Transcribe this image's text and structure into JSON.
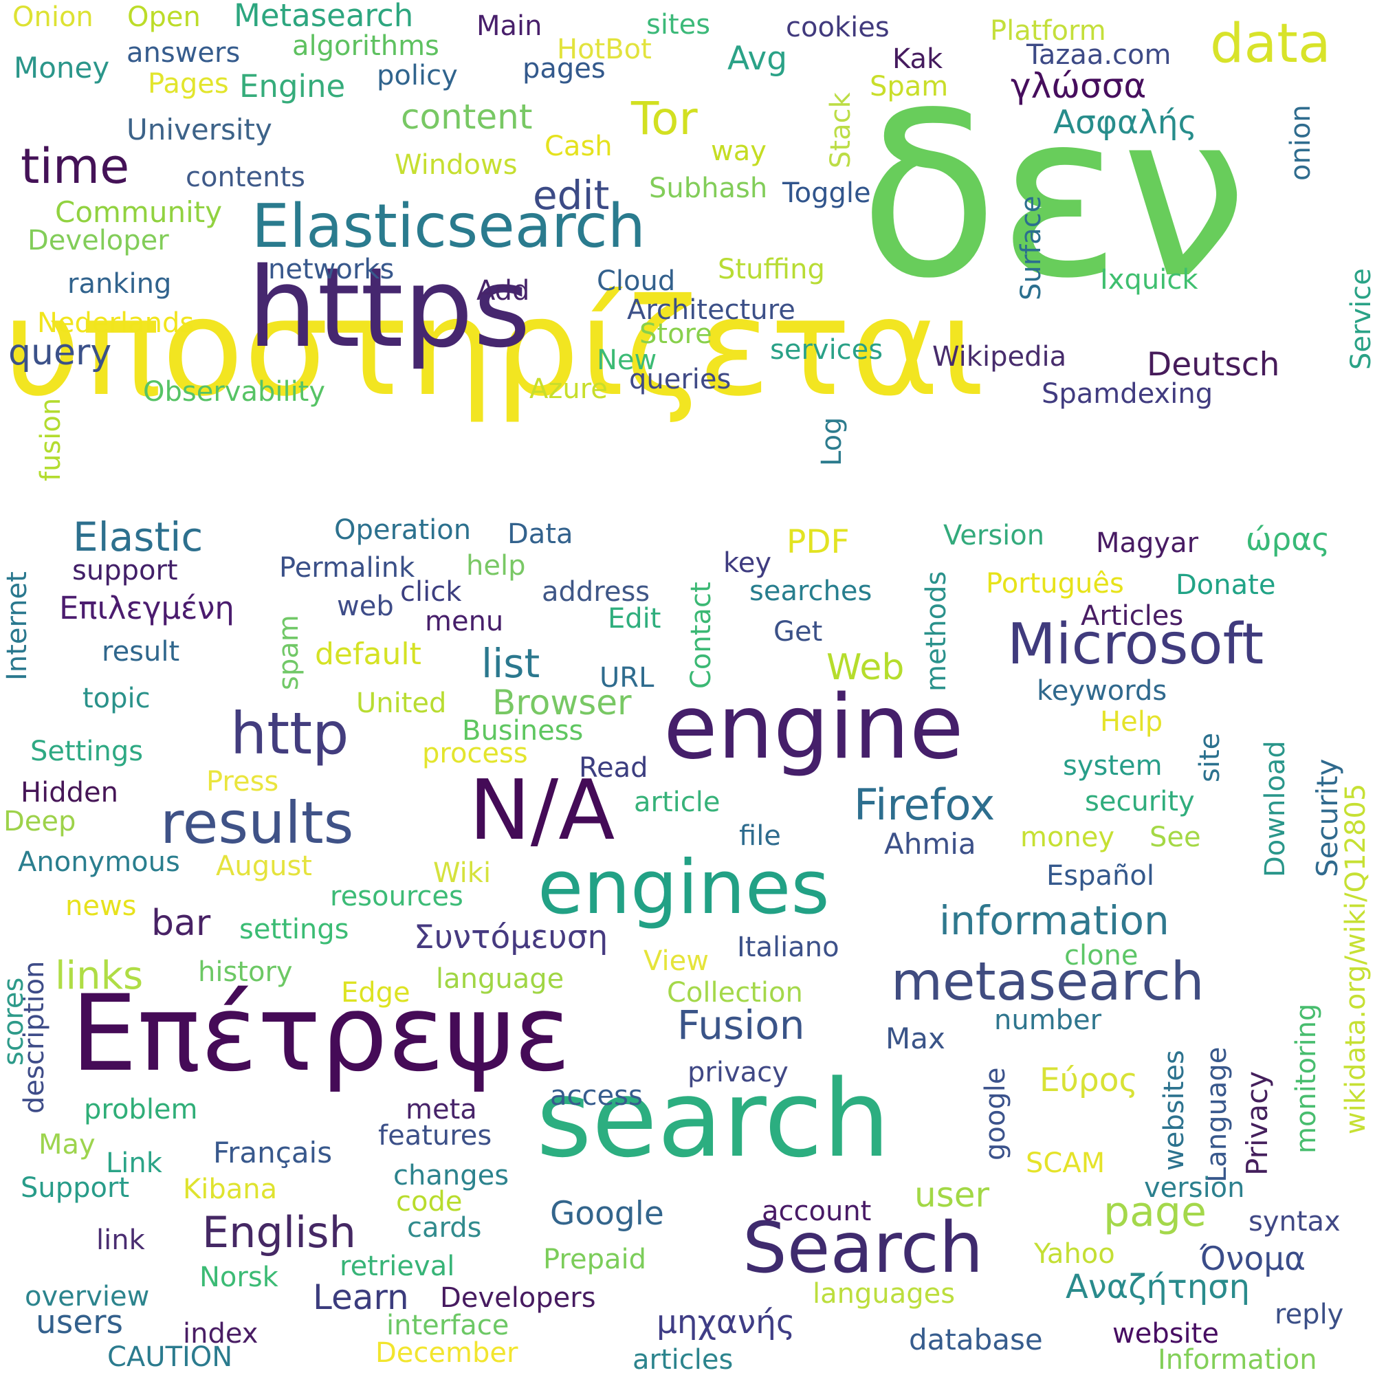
{
  "words": [
    {
      "text": "υποστηρίζεται",
      "color": "#f2e521"
    },
    {
      "text": "δεν",
      "color": "#68cd5b"
    },
    {
      "text": "https",
      "color": "#46276f"
    },
    {
      "text": "Επέτρεψε",
      "color": "#450b57"
    },
    {
      "text": "search",
      "color": "#2cae80"
    },
    {
      "text": "engine",
      "color": "#451f6a"
    },
    {
      "text": "engines",
      "color": "#22a185"
    },
    {
      "text": "N/A",
      "color": "#440b57"
    },
    {
      "text": "Elasticsearch",
      "color": "#2a7b8e"
    },
    {
      "text": "Search",
      "color": "#3f2b6e"
    },
    {
      "text": "Microsoft",
      "color": "#403b7d"
    },
    {
      "text": "metasearch",
      "color": "#404c80"
    },
    {
      "text": "results",
      "color": "#3f5287"
    },
    {
      "text": "http",
      "color": "#433d7e"
    },
    {
      "text": "data",
      "color": "#d8e32a"
    },
    {
      "text": "time",
      "color": "#441257"
    },
    {
      "text": "Tor",
      "color": "#d2e021"
    },
    {
      "text": "English",
      "color": "#452864"
    },
    {
      "text": "Firefox",
      "color": "#2d6e8e"
    },
    {
      "text": "information",
      "color": "#2f788e"
    },
    {
      "text": "Fusion",
      "color": "#3a5488"
    },
    {
      "text": "page",
      "color": "#a4d84b"
    },
    {
      "text": "Elastic",
      "color": "#2d708e"
    },
    {
      "text": "list",
      "color": "#2b788e"
    },
    {
      "text": "links",
      "color": "#afdd45"
    },
    {
      "text": "edit",
      "color": "#3c4b86"
    },
    {
      "text": "query",
      "color": "#3b5189"
    },
    {
      "text": "bar",
      "color": "#482265"
    },
    {
      "text": "user",
      "color": "#a2d845"
    },
    {
      "text": "content",
      "color": "#78c864"
    },
    {
      "text": "Browser",
      "color": "#78c864"
    },
    {
      "text": "Web",
      "color": "#b5dd2c"
    },
    {
      "text": "Learn",
      "color": "#3b3c7d"
    },
    {
      "text": "Αναζήτηση",
      "color": "#2a8b8c"
    },
    {
      "text": "Deutsch",
      "color": "#461b5a"
    },
    {
      "text": "γλώσσα",
      "color": "#460e5d"
    },
    {
      "text": "Google",
      "color": "#33658c"
    },
    {
      "text": "users",
      "color": "#33608c"
    },
    {
      "text": "Εύρος",
      "color": "#d8e236"
    },
    {
      "text": "Ασφαλής",
      "color": "#278d8b"
    },
    {
      "text": "Όνομα",
      "color": "#3a4c89"
    },
    {
      "text": "Συντόμευση",
      "color": "#463a80"
    },
    {
      "text": "Επιλεγμένη",
      "color": "#4b1c6e"
    },
    {
      "text": "μηχανής",
      "color": "#3f3d85"
    },
    {
      "text": "ώρας",
      "color": "#38b977"
    },
    {
      "text": "Avg",
      "color": "#2ba287"
    },
    {
      "text": "Metasearch",
      "color": "#2da67f"
    },
    {
      "text": "Engine",
      "color": "#36ac7b"
    },
    {
      "text": "Money",
      "color": "#2b968a"
    },
    {
      "text": "Onion",
      "color": "#dde233"
    },
    {
      "text": "Open",
      "color": "#bcdc29"
    },
    {
      "text": "answers",
      "color": "#365c8d"
    },
    {
      "text": "algorithms",
      "color": "#5ec160"
    },
    {
      "text": "Main",
      "color": "#481f6b"
    },
    {
      "text": "sites",
      "color": "#3cb979"
    },
    {
      "text": "HotBot",
      "color": "#e2e33d"
    },
    {
      "text": "cookies",
      "color": "#413a7d"
    },
    {
      "text": "Platform",
      "color": "#c4df3b"
    },
    {
      "text": "Kak",
      "color": "#451b5e"
    },
    {
      "text": "Tazaa.com",
      "color": "#3d4a86"
    },
    {
      "text": "Pages",
      "color": "#e2e52d"
    },
    {
      "text": "policy",
      "color": "#30648d"
    },
    {
      "text": "pages",
      "color": "#33598c"
    },
    {
      "text": "Spam",
      "color": "#c9de2a"
    },
    {
      "text": "University",
      "color": "#3d6389"
    },
    {
      "text": "Stack",
      "color": "#bcdd46"
    },
    {
      "text": "Cash",
      "color": "#e5e21e"
    },
    {
      "text": "way",
      "color": "#c5dd23"
    },
    {
      "text": "Windows",
      "color": "#c6df31"
    },
    {
      "text": "onion",
      "color": "#2f6c8e"
    },
    {
      "text": "contents",
      "color": "#3f5a89"
    },
    {
      "text": "Subhash",
      "color": "#82cd59"
    },
    {
      "text": "Toggle",
      "color": "#31558c"
    },
    {
      "text": "Surface",
      "color": "#2b6f8e"
    },
    {
      "text": "Community",
      "color": "#91d240"
    },
    {
      "text": "Developer",
      "color": "#82cd59"
    },
    {
      "text": "Service",
      "color": "#2aa286"
    },
    {
      "text": "networks",
      "color": "#38588c"
    },
    {
      "text": "Stuffing",
      "color": "#b8dc34"
    },
    {
      "text": "ranking",
      "color": "#31638d"
    },
    {
      "text": "Add",
      "color": "#47246a"
    },
    {
      "text": "Cloud",
      "color": "#33608c"
    },
    {
      "text": "Ixquick",
      "color": "#3fbf6f"
    },
    {
      "text": "Architecture",
      "color": "#3c5088"
    },
    {
      "text": "Nederlands",
      "color": "#f1e51d"
    },
    {
      "text": "Store",
      "color": "#88d04c"
    },
    {
      "text": "services",
      "color": "#2aa187"
    },
    {
      "text": "New",
      "color": "#3cbb75"
    },
    {
      "text": "Wikipedia",
      "color": "#472c6c"
    },
    {
      "text": "queries",
      "color": "#404a86"
    },
    {
      "text": "Observability",
      "color": "#56c365"
    },
    {
      "text": "Azure",
      "color": "#c8de2c"
    },
    {
      "text": "Spamdexing",
      "color": "#413c80"
    },
    {
      "text": "fusion",
      "color": "#b3dc2f"
    },
    {
      "text": "Log",
      "color": "#2d7c8e"
    },
    {
      "text": "Operation",
      "color": "#2c718e"
    },
    {
      "text": "Data",
      "color": "#33628d"
    },
    {
      "text": "PDF",
      "color": "#e2e322"
    },
    {
      "text": "Version",
      "color": "#33aa7c"
    },
    {
      "text": "Magyar",
      "color": "#481b63"
    },
    {
      "text": "support",
      "color": "#421f68"
    },
    {
      "text": "Permalink",
      "color": "#3a5088"
    },
    {
      "text": "help",
      "color": "#79c865"
    },
    {
      "text": "key",
      "color": "#3f3c80"
    },
    {
      "text": "searches",
      "color": "#277e8e"
    },
    {
      "text": "Português",
      "color": "#e7e31a"
    },
    {
      "text": "Donate",
      "color": "#21a386"
    },
    {
      "text": "methods",
      "color": "#2a918b"
    },
    {
      "text": "Internet",
      "color": "#2a788e"
    },
    {
      "text": "click",
      "color": "#3c3f80"
    },
    {
      "text": "address",
      "color": "#3f5787"
    },
    {
      "text": "web",
      "color": "#3e4c88"
    },
    {
      "text": "menu",
      "color": "#471f6a"
    },
    {
      "text": "Edit",
      "color": "#2fae7d"
    },
    {
      "text": "Articles",
      "color": "#491d64"
    },
    {
      "text": "Contact",
      "color": "#3bb874"
    },
    {
      "text": "Get",
      "color": "#3b5188"
    },
    {
      "text": "spam",
      "color": "#71c867"
    },
    {
      "text": "default",
      "color": "#d5e224"
    },
    {
      "text": "result",
      "color": "#30678d"
    },
    {
      "text": "URL",
      "color": "#2f6c8e"
    },
    {
      "text": "keywords",
      "color": "#30698d"
    },
    {
      "text": "topic",
      "color": "#2a928a"
    },
    {
      "text": "United",
      "color": "#b8dc31"
    },
    {
      "text": "Help",
      "color": "#e5e32a"
    },
    {
      "text": "site",
      "color": "#2b718e"
    },
    {
      "text": "Download",
      "color": "#2a968a"
    },
    {
      "text": "Security",
      "color": "#306a8e"
    },
    {
      "text": "wikidata.org/wiki/Q12805",
      "color": "#c6e033"
    },
    {
      "text": "Settings",
      "color": "#2ea983"
    },
    {
      "text": "Business",
      "color": "#5ec660"
    },
    {
      "text": "process",
      "color": "#e3e52d"
    },
    {
      "text": "Read",
      "color": "#3c3e80"
    },
    {
      "text": "system",
      "color": "#289e89"
    },
    {
      "text": "Press",
      "color": "#eae53d"
    },
    {
      "text": "Hidden",
      "color": "#461657"
    },
    {
      "text": "article",
      "color": "#36b279"
    },
    {
      "text": "security",
      "color": "#2fad7c"
    },
    {
      "text": "Deep",
      "color": "#9dd24a"
    },
    {
      "text": "file",
      "color": "#2f6c8e"
    },
    {
      "text": "money",
      "color": "#c6e033"
    },
    {
      "text": "See",
      "color": "#a4d845"
    },
    {
      "text": "Ahmia",
      "color": "#3d5189"
    },
    {
      "text": "Anonymous",
      "color": "#2a7e8e"
    },
    {
      "text": "August",
      "color": "#e5e33d"
    },
    {
      "text": "Wiki",
      "color": "#d5e23d"
    },
    {
      "text": "Español",
      "color": "#34588c"
    },
    {
      "text": "news",
      "color": "#e7e21c"
    },
    {
      "text": "resources",
      "color": "#3cbb76"
    },
    {
      "text": "description",
      "color": "#3e4c88"
    },
    {
      "text": "settings",
      "color": "#3bbc74"
    },
    {
      "text": "View",
      "color": "#e5e43a"
    },
    {
      "text": "Italiano",
      "color": "#3c5189"
    },
    {
      "text": "clone",
      "color": "#5dc667"
    },
    {
      "text": "scores",
      "color": "#2d9a89"
    },
    {
      "text": "history",
      "color": "#6cc864"
    },
    {
      "text": "Edge",
      "color": "#dde322"
    },
    {
      "text": "language",
      "color": "#a0d644"
    },
    {
      "text": "Collection",
      "color": "#a4d84a"
    },
    {
      "text": "number",
      "color": "#2f768e"
    },
    {
      "text": "monitoring",
      "color": "#48bd6e"
    },
    {
      "text": "Max",
      "color": "#3a5488"
    },
    {
      "text": "websites",
      "color": "#2c728e"
    },
    {
      "text": "Language",
      "color": "#38588c"
    },
    {
      "text": "Privacy",
      "color": "#441f5c"
    },
    {
      "text": "privacy",
      "color": "#404885"
    },
    {
      "text": "access",
      "color": "#365c8d"
    },
    {
      "text": "google",
      "color": "#3b528b"
    },
    {
      "text": "problem",
      "color": "#2fae78"
    },
    {
      "text": "meta",
      "color": "#48246a"
    },
    {
      "text": "May",
      "color": "#9dd44e"
    },
    {
      "text": "features",
      "color": "#3c5088"
    },
    {
      "text": "Link",
      "color": "#2ba487"
    },
    {
      "text": "Français",
      "color": "#38588c"
    },
    {
      "text": "changes",
      "color": "#2c838d"
    },
    {
      "text": "SCAM",
      "color": "#e5e329"
    },
    {
      "text": "Support",
      "color": "#289c89"
    },
    {
      "text": "Kibana",
      "color": "#dfe32f"
    },
    {
      "text": "code",
      "color": "#b8dc2c"
    },
    {
      "text": "version",
      "color": "#2c808e"
    },
    {
      "text": "cards",
      "color": "#318b8d"
    },
    {
      "text": "account",
      "color": "#481a66"
    },
    {
      "text": "syntax",
      "color": "#404885"
    },
    {
      "text": "link",
      "color": "#4a2d71"
    },
    {
      "text": "retrieval",
      "color": "#37b477"
    },
    {
      "text": "Prepaid",
      "color": "#7ccd5a"
    },
    {
      "text": "Yahoo",
      "color": "#c4df34"
    },
    {
      "text": "Norsk",
      "color": "#3cbb75"
    },
    {
      "text": "Developers",
      "color": "#471b60"
    },
    {
      "text": "languages",
      "color": "#bcde3d"
    },
    {
      "text": "overview",
      "color": "#2c848d"
    },
    {
      "text": "interface",
      "color": "#6cc865"
    },
    {
      "text": "index",
      "color": "#491d64"
    },
    {
      "text": "website",
      "color": "#470d62"
    },
    {
      "text": "reply",
      "color": "#3b4f87"
    },
    {
      "text": "database",
      "color": "#365c8d"
    },
    {
      "text": "CAUTION",
      "color": "#2b7b8e"
    },
    {
      "text": "December",
      "color": "#f2e52e"
    },
    {
      "text": "articles",
      "color": "#2c848d"
    },
    {
      "text": "Information",
      "color": "#82cf58"
    }
  ]
}
